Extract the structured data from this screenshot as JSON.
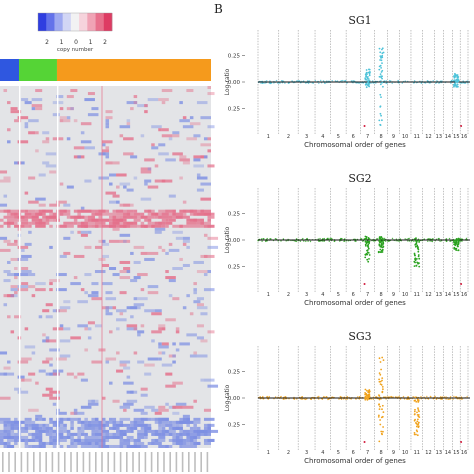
{
  "colors": {
    "sg1": "#4fc3d9",
    "sg2": "#2aa21f",
    "sg3": "#f0a21c",
    "baseline_dark": "#111111",
    "bar_blue": "#2f57e0",
    "bar_green": "#55d436",
    "bar_orange": "#f59a1c",
    "heat_bg": "#e3e4e7",
    "heat_red": "#e46f8a",
    "heat_blue": "#7d8fe3",
    "dash": "#9a9a9a",
    "accent_red": "#d11a3c"
  },
  "legend": {
    "label": "copy number",
    "ticks": [
      "2",
      "1",
      "0",
      "1",
      "2"
    ]
  },
  "panel_b": {
    "label": "B",
    "xlabel": "Chromosomal order of genes",
    "ylabel": "Log-ratio"
  },
  "chart_data": [
    {
      "type": "heatmap",
      "title": "",
      "legend": "copy number",
      "legend_range": [
        -2,
        2
      ],
      "groups": [
        {
          "color": "blue",
          "share": 0.09
        },
        {
          "color": "green",
          "share": 0.18
        },
        {
          "color": "orange",
          "share": 0.73
        }
      ]
    },
    {
      "type": "scatter",
      "title": "SG1",
      "xlabel": "Chromosomal order of genes",
      "ylabel": "Log-ratio",
      "ylim": [
        -0.45,
        0.45
      ],
      "yticks": [
        "0.25",
        "0.00",
        "0.25"
      ],
      "chromosomes": [
        "1",
        "2",
        "3",
        "4",
        "5",
        "6",
        "7",
        "8",
        "9",
        "10",
        "11",
        "12",
        "13",
        "14",
        "15",
        "16"
      ],
      "peaks": [
        {
          "chrom": "7",
          "min": -0.05,
          "max": 0.12
        },
        {
          "chrom": "8",
          "min": -0.42,
          "max": 0.35
        },
        {
          "chrom": "15",
          "min": -0.06,
          "max": 0.08
        }
      ]
    },
    {
      "type": "scatter",
      "title": "SG2",
      "xlabel": "Chromosomal order of genes",
      "ylabel": "Log-ratio",
      "ylim": [
        -0.45,
        0.45
      ],
      "yticks": [
        "0.25",
        "0.00",
        "0.25"
      ],
      "chromosomes": [
        "1",
        "2",
        "3",
        "4",
        "5",
        "6",
        "7",
        "8",
        "9",
        "10",
        "11",
        "12",
        "13",
        "14",
        "15",
        "16"
      ],
      "peaks": [
        {
          "chrom": "7",
          "min": -0.22,
          "max": 0.04
        },
        {
          "chrom": "8",
          "min": -0.12,
          "max": 0.03
        },
        {
          "chrom": "11",
          "min": -0.25,
          "max": 0.02
        },
        {
          "chrom": "15",
          "min": -0.1,
          "max": 0.02
        }
      ]
    },
    {
      "type": "scatter",
      "title": "SG3",
      "xlabel": "Chromosomal order of genes",
      "ylabel": "Log-ratio",
      "ylim": [
        -0.45,
        0.45
      ],
      "yticks": [
        "0.25",
        "0.00",
        "0.25"
      ],
      "chromosomes": [
        "1",
        "2",
        "3",
        "4",
        "5",
        "6",
        "7",
        "8",
        "9",
        "10",
        "11",
        "12",
        "13",
        "14",
        "15",
        "16"
      ],
      "peaks": [
        {
          "chrom": "7",
          "min": -0.02,
          "max": 0.08
        },
        {
          "chrom": "8",
          "min": -0.42,
          "max": 0.38
        },
        {
          "chrom": "11",
          "min": -0.35,
          "max": 0.02
        }
      ]
    }
  ]
}
